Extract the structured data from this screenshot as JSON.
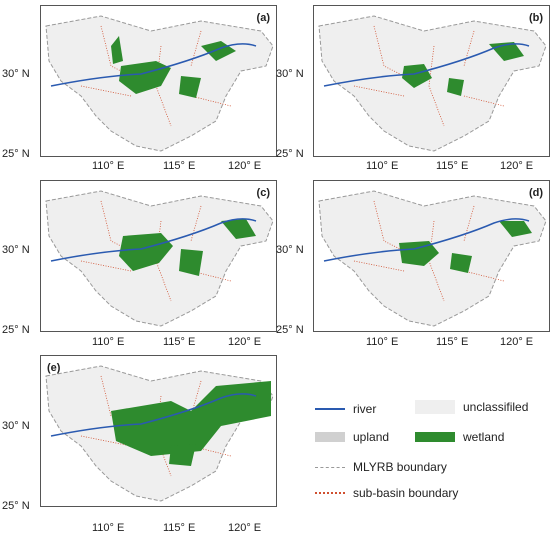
{
  "panels": [
    {
      "id": "a",
      "label": "(a)"
    },
    {
      "id": "b",
      "label": "(b)"
    },
    {
      "id": "c",
      "label": "(c)"
    },
    {
      "id": "d",
      "label": "(d)"
    },
    {
      "id": "e",
      "label": "(e)"
    }
  ],
  "axes": {
    "lat_ticks": [
      "30° N",
      "25° N"
    ],
    "lon_ticks": [
      "110° E",
      "115° E",
      "120° E"
    ]
  },
  "legend": {
    "river": "river",
    "unclassified": "unclassifiled",
    "upland": "upland",
    "wetland": "wetland",
    "mlyrb": "MLYRB  boundary",
    "subbasin": "sub-basin boundary"
  },
  "colors": {
    "river": "#2a5ab0",
    "unclassified": "#efefef",
    "upland": "#d0d0d0",
    "wetland": "#2e8b2e",
    "mlyrb_boundary": "#999999",
    "subbasin_boundary": "#d05030"
  }
}
